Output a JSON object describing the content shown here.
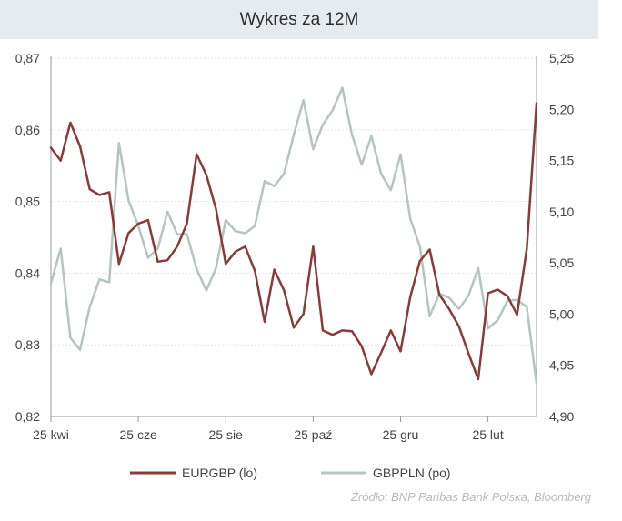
{
  "title": "Wykres za 12M",
  "source": "Źródło:  BNP Paribas Bank Polska, Bloomberg",
  "colors": {
    "eurgbp": "#8b3a3a",
    "gbppln": "#b3c5be",
    "grid": "#e6e6e6",
    "axis": "#9a9a9a",
    "text": "#444444"
  },
  "chart_data": {
    "type": "line",
    "title": "Wykres za 12M",
    "x_ticks": [
      "25 kwi",
      "25 cze",
      "25 sie",
      "25 paź",
      "25 gru",
      "25 lut"
    ],
    "x_tick_index": [
      0,
      9,
      18,
      27,
      36,
      45
    ],
    "y_left": {
      "lim": [
        0.82,
        0.87
      ],
      "ticks": [
        "0,82",
        "0,83",
        "0,84",
        "0,85",
        "0,86",
        "0,87"
      ]
    },
    "y_right": {
      "lim": [
        4.9,
        5.25
      ],
      "ticks": [
        "4,90",
        "4,95",
        "5,00",
        "5,05",
        "5,10",
        "5,15",
        "5,20",
        "5,25"
      ]
    },
    "grid": true,
    "legend_position": "bottom",
    "series": [
      {
        "name": "EURGBP (lo)",
        "axis": "left",
        "values": [
          0.8575,
          0.8557,
          0.861,
          0.8577,
          0.8517,
          0.8509,
          0.8513,
          0.8413,
          0.8456,
          0.8469,
          0.8474,
          0.8416,
          0.8418,
          0.8437,
          0.8469,
          0.8566,
          0.8537,
          0.8489,
          0.8413,
          0.843,
          0.8437,
          0.8403,
          0.8332,
          0.8405,
          0.8376,
          0.8324,
          0.8343,
          0.8437,
          0.832,
          0.8314,
          0.832,
          0.8319,
          0.8298,
          0.8259,
          0.8289,
          0.832,
          0.8291,
          0.8367,
          0.8417,
          0.8433,
          0.837,
          0.835,
          0.8326,
          0.8288,
          0.8252,
          0.8372,
          0.8377,
          0.8368,
          0.8342,
          0.8434,
          0.8637
        ]
      },
      {
        "name": "GBPPLN (po)",
        "axis": "right",
        "values": [
          5.03,
          5.064,
          4.977,
          4.965,
          5.007,
          5.034,
          5.031,
          5.167,
          5.111,
          5.086,
          5.055,
          5.064,
          5.1,
          5.078,
          5.078,
          5.044,
          5.023,
          5.045,
          5.092,
          5.081,
          5.079,
          5.086,
          5.13,
          5.125,
          5.137,
          5.175,
          5.209,
          5.161,
          5.185,
          5.199,
          5.221,
          5.175,
          5.146,
          5.174,
          5.137,
          5.121,
          5.156,
          5.093,
          5.066,
          4.998,
          5.02,
          5.016,
          5.005,
          5.018,
          5.045,
          4.986,
          4.994,
          5.013,
          5.014,
          5.007,
          4.932
        ]
      }
    ]
  }
}
